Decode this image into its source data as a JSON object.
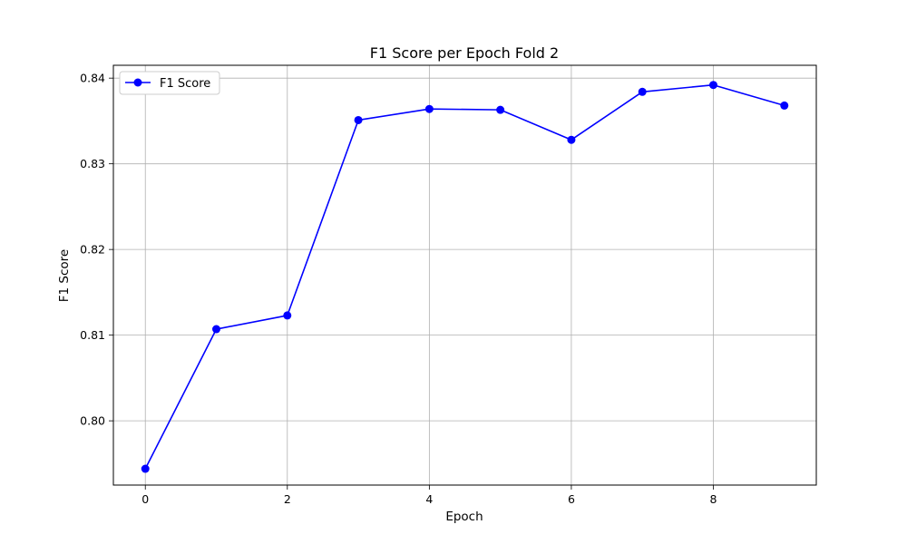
{
  "chart_data": {
    "type": "line",
    "title": "F1 Score per Epoch Fold 2",
    "xlabel": "Epoch",
    "ylabel": "F1 Score",
    "x": [
      0,
      1,
      2,
      3,
      4,
      5,
      6,
      7,
      8,
      9
    ],
    "series": [
      {
        "name": "F1 Score",
        "color": "#0000ff",
        "marker": "circle",
        "values": [
          0.7944,
          0.8107,
          0.8123,
          0.8351,
          0.8364,
          0.8363,
          0.8328,
          0.8384,
          0.8392,
          0.8368
        ]
      }
    ],
    "xlim": [
      -0.45,
      9.45
    ],
    "ylim": [
      0.7925,
      0.8415
    ],
    "xticks": [
      0,
      2,
      4,
      6,
      8
    ],
    "yticks": [
      0.8,
      0.81,
      0.82,
      0.83,
      0.84
    ],
    "xtick_labels": [
      "0",
      "2",
      "4",
      "6",
      "8"
    ],
    "ytick_labels": [
      "0.80",
      "0.81",
      "0.82",
      "0.83",
      "0.84"
    ],
    "grid": true,
    "legend": "upper-left"
  }
}
